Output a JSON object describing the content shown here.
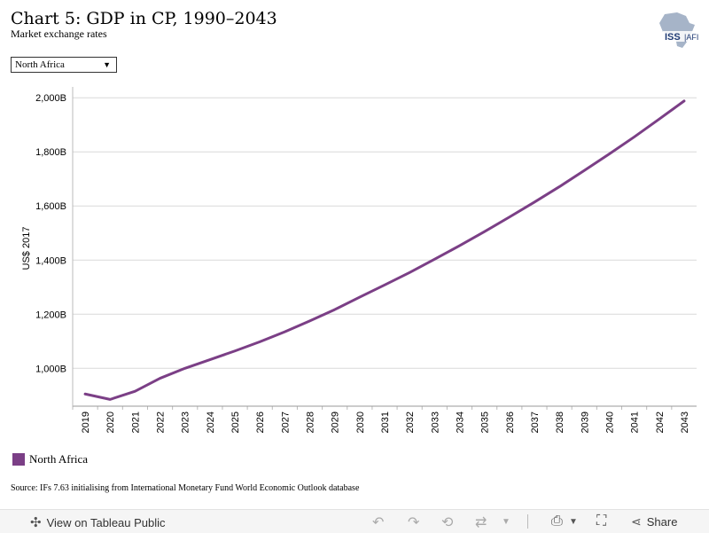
{
  "header": {
    "title": "Chart 5: GDP in CP, 1990–2043",
    "subtitle": "Market exchange rates",
    "logo_text": "ISS AFI"
  },
  "filter": {
    "selected": "North Africa"
  },
  "chart_data": {
    "type": "line",
    "title": "",
    "ylabel": "US$ 2017",
    "xlabel": "",
    "x": [
      "2019",
      "2020",
      "2021",
      "2022",
      "2023",
      "2024",
      "2025",
      "2026",
      "2027",
      "2028",
      "2029",
      "2030",
      "2031",
      "2032",
      "2033",
      "2034",
      "2035",
      "2036",
      "2037",
      "2038",
      "2039",
      "2040",
      "2041",
      "2042",
      "2043"
    ],
    "series": [
      {
        "name": "North Africa",
        "color": "#7b3f86",
        "values": [
          905,
          885,
          915,
          963,
          1000,
          1032,
          1064,
          1098,
          1135,
          1175,
          1217,
          1263,
          1308,
          1354,
          1403,
          1453,
          1505,
          1559,
          1614,
          1671,
          1731,
          1792,
          1855,
          1921,
          1988
        ]
      }
    ],
    "ylim": [
      860,
      2040
    ],
    "yticks": [
      1000,
      1200,
      1400,
      1600,
      1800,
      2000
    ],
    "ytick_labels": [
      "1,000B",
      "1,200B",
      "1,400B",
      "1,600B",
      "1,800B",
      "2,000B"
    ],
    "grid": true,
    "legend_position": "bottom-left"
  },
  "legend": {
    "label": "North Africa",
    "color": "#7b3f86"
  },
  "source": "Source: IFs 7.63 initialising from International Monetary Fund World Economic Outlook database",
  "footer": {
    "view_label": "View on Tableau Public",
    "share_label": "Share",
    "icons": [
      "undo-icon",
      "redo-icon",
      "revert-icon",
      "refresh-icon",
      "download-icon",
      "fullscreen-icon",
      "share-icon"
    ]
  }
}
